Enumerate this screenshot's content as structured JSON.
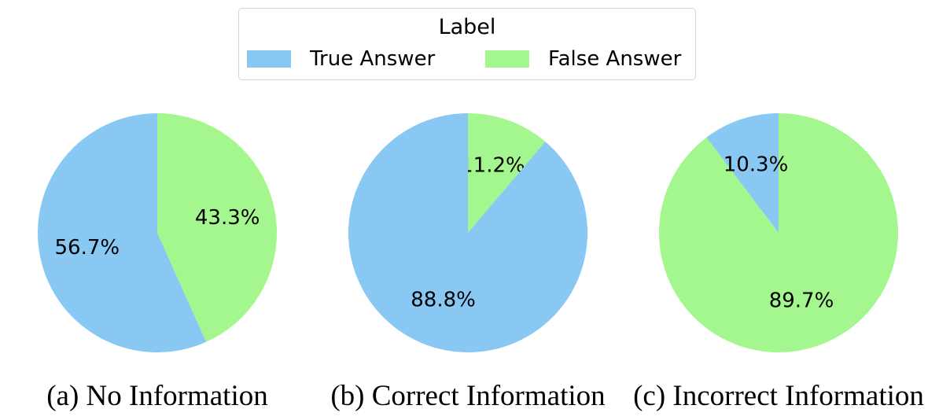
{
  "legend": {
    "title": "Label",
    "entries": [
      {
        "label": "True Answer",
        "color": "#89c8f3"
      },
      {
        "label": "False Answer",
        "color": "#a4f78f"
      }
    ]
  },
  "chart_data": [
    {
      "type": "pie",
      "caption": "(a) No Information",
      "slices": [
        {
          "label": "True Answer",
          "value": 56.7,
          "text": "56.7%",
          "color": "#89c8f3"
        },
        {
          "label": "False Answer",
          "value": 43.3,
          "text": "43.3%",
          "color": "#a4f78f"
        }
      ]
    },
    {
      "type": "pie",
      "caption": "(b) Correct Information",
      "slices": [
        {
          "label": "True Answer",
          "value": 88.8,
          "text": "88.8%",
          "color": "#89c8f3"
        },
        {
          "label": "False Answer",
          "value": 11.2,
          "text": "11.2%",
          "color": "#a4f78f"
        }
      ]
    },
    {
      "type": "pie",
      "caption": "(c) Incorrect Information",
      "slices": [
        {
          "label": "True Answer",
          "value": 10.3,
          "text": "10.3%",
          "color": "#89c8f3"
        },
        {
          "label": "False Answer",
          "value": 89.7,
          "text": "89.7%",
          "color": "#a4f78f"
        }
      ]
    }
  ]
}
